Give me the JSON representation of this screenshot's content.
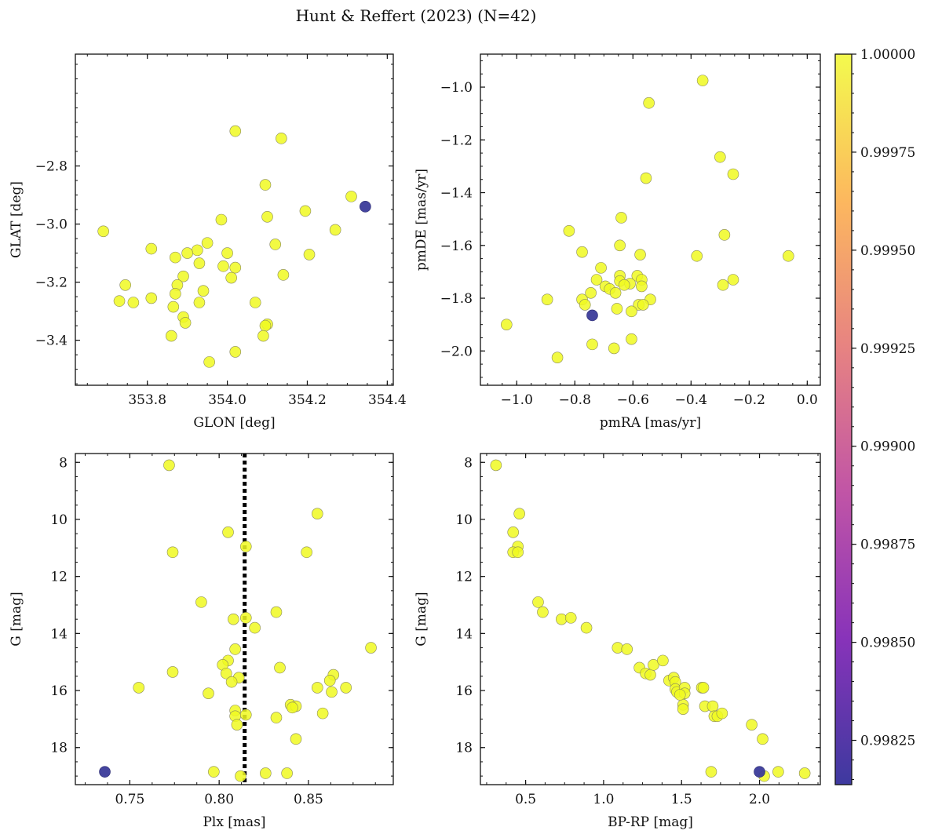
{
  "figure": {
    "title": "Hunt & Reffert (2023) (N=42)"
  },
  "colors": {
    "member_high": "#f0f921",
    "member_low": "#3b3b9a",
    "ref_line": "#000000"
  },
  "colorbar": {
    "ticks": [
      "1.00000",
      "0.99975",
      "0.99950",
      "0.99925",
      "0.99900",
      "0.99875",
      "0.99850",
      "0.99825"
    ],
    "range": [
      0.998137,
      1.0
    ],
    "cmap": "plasma"
  },
  "chart_data": [
    {
      "type": "scatter",
      "name": "sky",
      "xlabel": "GLON [deg]",
      "ylabel": "GLAT [deg]",
      "xlim": [
        353.62,
        354.415
      ],
      "ylim": [
        -3.555,
        -2.415
      ],
      "invert_y": false,
      "xticks": [
        353.8,
        354.0,
        354.2,
        354.4
      ],
      "xtick_labels": [
        "353.8",
        "354.0",
        "354.2",
        "354.4"
      ],
      "yticks": [
        -2.8,
        -3.0,
        -3.2,
        -3.4
      ],
      "ytick_labels": [
        "−2.8",
        "−3.0",
        "−3.2",
        "−3.4"
      ],
      "points": [
        [
          354.02,
          -2.68,
          1
        ],
        [
          354.135,
          -2.705,
          1
        ],
        [
          354.095,
          -2.865,
          1
        ],
        [
          354.31,
          -2.905,
          1
        ],
        [
          353.69,
          -3.025,
          1
        ],
        [
          354.195,
          -2.955,
          1
        ],
        [
          353.985,
          -2.985,
          1
        ],
        [
          354.1,
          -2.975,
          1
        ],
        [
          354.27,
          -3.02,
          1
        ],
        [
          353.95,
          -3.065,
          1
        ],
        [
          353.81,
          -3.085,
          1
        ],
        [
          353.925,
          -3.09,
          1
        ],
        [
          353.9,
          -3.1,
          1
        ],
        [
          353.87,
          -3.115,
          1
        ],
        [
          354.0,
          -3.1,
          1
        ],
        [
          354.12,
          -3.07,
          1
        ],
        [
          354.205,
          -3.105,
          1
        ],
        [
          353.93,
          -3.135,
          1
        ],
        [
          353.99,
          -3.145,
          1
        ],
        [
          354.02,
          -3.15,
          1
        ],
        [
          353.89,
          -3.18,
          1
        ],
        [
          354.01,
          -3.185,
          1
        ],
        [
          354.14,
          -3.175,
          1
        ],
        [
          353.745,
          -3.21,
          1
        ],
        [
          353.875,
          -3.21,
          1
        ],
        [
          353.94,
          -3.23,
          1
        ],
        [
          353.87,
          -3.24,
          1
        ],
        [
          353.81,
          -3.255,
          1
        ],
        [
          353.73,
          -3.265,
          1
        ],
        [
          353.765,
          -3.27,
          1
        ],
        [
          353.93,
          -3.27,
          1
        ],
        [
          354.07,
          -3.27,
          1
        ],
        [
          353.865,
          -3.285,
          1
        ],
        [
          353.89,
          -3.32,
          1
        ],
        [
          353.895,
          -3.34,
          1
        ],
        [
          354.1,
          -3.345,
          1
        ],
        [
          354.095,
          -3.35,
          1
        ],
        [
          353.86,
          -3.385,
          1
        ],
        [
          354.09,
          -3.385,
          1
        ],
        [
          354.02,
          -3.44,
          1
        ],
        [
          353.955,
          -3.475,
          1
        ],
        [
          354.345,
          -2.94,
          0.998137
        ]
      ]
    },
    {
      "type": "scatter",
      "name": "proper-motion",
      "xlabel": "pmRA [mas/yr]",
      "ylabel": "pmDE [mas/yr]",
      "xlim": [
        -1.125,
        0.045
      ],
      "ylim": [
        -2.13,
        -0.875
      ],
      "invert_y": false,
      "xticks": [
        -1.0,
        -0.8,
        -0.6,
        -0.4,
        -0.2,
        0.0
      ],
      "xtick_labels": [
        "−1.0",
        "−0.8",
        "−0.6",
        "−0.4",
        "−0.2",
        "0.0"
      ],
      "yticks": [
        -1.0,
        -1.2,
        -1.4,
        -1.6,
        -1.8,
        -2.0
      ],
      "ytick_labels": [
        "−1.0",
        "−1.2",
        "−1.4",
        "−1.6",
        "−1.8",
        "−2.0"
      ],
      "points": [
        [
          -0.36,
          -0.975,
          1
        ],
        [
          -0.545,
          -1.06,
          1
        ],
        [
          -0.3,
          -1.265,
          1
        ],
        [
          -0.255,
          -1.33,
          1
        ],
        [
          -0.555,
          -1.345,
          1
        ],
        [
          -0.64,
          -1.495,
          1
        ],
        [
          -0.82,
          -1.545,
          1
        ],
        [
          -0.285,
          -1.56,
          1
        ],
        [
          -0.645,
          -1.6,
          1
        ],
        [
          -0.775,
          -1.625,
          1
        ],
        [
          -0.575,
          -1.635,
          1
        ],
        [
          -0.38,
          -1.64,
          1
        ],
        [
          -0.065,
          -1.64,
          1
        ],
        [
          -0.71,
          -1.685,
          1
        ],
        [
          -0.645,
          -1.715,
          1
        ],
        [
          -0.585,
          -1.715,
          1
        ],
        [
          -0.725,
          -1.73,
          1
        ],
        [
          -0.645,
          -1.735,
          1
        ],
        [
          -0.57,
          -1.73,
          1
        ],
        [
          -0.255,
          -1.73,
          1
        ],
        [
          -0.61,
          -1.745,
          1
        ],
        [
          -0.63,
          -1.75,
          1
        ],
        [
          -0.695,
          -1.755,
          1
        ],
        [
          -0.57,
          -1.755,
          1
        ],
        [
          -0.29,
          -1.75,
          1
        ],
        [
          -0.68,
          -1.765,
          1
        ],
        [
          -0.745,
          -1.78,
          1
        ],
        [
          -0.66,
          -1.78,
          1
        ],
        [
          -0.895,
          -1.805,
          1
        ],
        [
          -0.775,
          -1.805,
          1
        ],
        [
          -0.54,
          -1.805,
          1
        ],
        [
          -0.765,
          -1.825,
          1
        ],
        [
          -0.58,
          -1.825,
          1
        ],
        [
          -0.565,
          -1.825,
          1
        ],
        [
          -0.655,
          -1.84,
          1
        ],
        [
          -0.605,
          -1.85,
          1
        ],
        [
          -1.035,
          -1.9,
          1
        ],
        [
          -0.605,
          -1.955,
          1
        ],
        [
          -0.74,
          -1.975,
          1
        ],
        [
          -0.665,
          -1.99,
          1
        ],
        [
          -0.86,
          -2.025,
          1
        ],
        [
          -0.74,
          -1.865,
          0.998137
        ]
      ]
    },
    {
      "type": "scatter",
      "name": "parallax-mag",
      "xlabel": "Plx [mas]",
      "ylabel": "G [mag]",
      "xlim": [
        0.7195,
        0.8975
      ],
      "ylim": [
        19.3,
        7.69
      ],
      "invert_y": true,
      "ref_x": 0.8143,
      "xticks": [
        0.75,
        0.8,
        0.85
      ],
      "xtick_labels": [
        "0.75",
        "0.80",
        "0.85"
      ],
      "yticks": [
        8,
        10,
        12,
        14,
        16,
        18
      ],
      "ytick_labels": [
        "8",
        "10",
        "12",
        "14",
        "16",
        "18"
      ],
      "points": [
        [
          0.772,
          8.1,
          1
        ],
        [
          0.855,
          9.8,
          1
        ],
        [
          0.805,
          10.45,
          1
        ],
        [
          0.815,
          10.95,
          1
        ],
        [
          0.774,
          11.15,
          1
        ],
        [
          0.849,
          11.15,
          1
        ],
        [
          0.79,
          12.9,
          1
        ],
        [
          0.832,
          13.25,
          1
        ],
        [
          0.815,
          13.45,
          1
        ],
        [
          0.808,
          13.5,
          1
        ],
        [
          0.82,
          13.8,
          1
        ],
        [
          0.885,
          14.5,
          1
        ],
        [
          0.809,
          14.55,
          1
        ],
        [
          0.805,
          14.95,
          1
        ],
        [
          0.802,
          15.1,
          1
        ],
        [
          0.834,
          15.2,
          1
        ],
        [
          0.774,
          15.35,
          1
        ],
        [
          0.804,
          15.4,
          1
        ],
        [
          0.864,
          15.45,
          1
        ],
        [
          0.811,
          15.55,
          1
        ],
        [
          0.862,
          15.65,
          1
        ],
        [
          0.807,
          15.7,
          1
        ],
        [
          0.755,
          15.9,
          1
        ],
        [
          0.855,
          15.9,
          1
        ],
        [
          0.871,
          15.9,
          1
        ],
        [
          0.794,
          16.1,
          1
        ],
        [
          0.863,
          16.05,
          1
        ],
        [
          0.84,
          16.5,
          1
        ],
        [
          0.843,
          16.55,
          1
        ],
        [
          0.841,
          16.6,
          1
        ],
        [
          0.809,
          16.7,
          1
        ],
        [
          0.858,
          16.8,
          1
        ],
        [
          0.809,
          16.9,
          1
        ],
        [
          0.815,
          16.85,
          1
        ],
        [
          0.832,
          16.95,
          1
        ],
        [
          0.81,
          17.2,
          1
        ],
        [
          0.843,
          17.7,
          1
        ],
        [
          0.797,
          18.85,
          1
        ],
        [
          0.826,
          18.9,
          1
        ],
        [
          0.838,
          18.9,
          1
        ],
        [
          0.812,
          19.0,
          1
        ],
        [
          0.736,
          18.85,
          0.998137
        ]
      ]
    },
    {
      "type": "scatter",
      "name": "color-mag",
      "xlabel": "BP-RP [mag]",
      "ylabel": "G [mag]",
      "xlim": [
        0.21,
        2.39
      ],
      "ylim": [
        19.3,
        7.69
      ],
      "invert_y": true,
      "xticks": [
        0.5,
        1.0,
        1.5,
        2.0
      ],
      "xtick_labels": [
        "0.5",
        "1.0",
        "1.5",
        "2.0"
      ],
      "yticks": [
        8,
        10,
        12,
        14,
        16,
        18
      ],
      "ytick_labels": [
        "8",
        "10",
        "12",
        "14",
        "16",
        "18"
      ],
      "points": [
        [
          0.31,
          8.1,
          1
        ],
        [
          0.46,
          9.8,
          1
        ],
        [
          0.42,
          10.45,
          1
        ],
        [
          0.45,
          10.95,
          1
        ],
        [
          0.42,
          11.15,
          1
        ],
        [
          0.45,
          11.15,
          1
        ],
        [
          0.58,
          12.9,
          1
        ],
        [
          0.61,
          13.25,
          1
        ],
        [
          0.73,
          13.5,
          1
        ],
        [
          0.79,
          13.45,
          1
        ],
        [
          0.89,
          13.8,
          1
        ],
        [
          1.09,
          14.5,
          1
        ],
        [
          1.15,
          14.55,
          1
        ],
        [
          1.23,
          15.2,
          1
        ],
        [
          1.27,
          15.4,
          1
        ],
        [
          1.3,
          15.45,
          1
        ],
        [
          1.32,
          15.1,
          1
        ],
        [
          1.38,
          14.95,
          1
        ],
        [
          1.42,
          15.65,
          1
        ],
        [
          1.45,
          15.55,
          1
        ],
        [
          1.46,
          15.7,
          1
        ],
        [
          1.46,
          15.95,
          1
        ],
        [
          1.47,
          16.05,
          1
        ],
        [
          1.52,
          15.9,
          1
        ],
        [
          1.52,
          16.1,
          1
        ],
        [
          1.51,
          16.5,
          1
        ],
        [
          1.51,
          16.65,
          1
        ],
        [
          1.63,
          15.9,
          1
        ],
        [
          1.65,
          16.55,
          1
        ],
        [
          1.7,
          16.55,
          1
        ],
        [
          1.71,
          16.9,
          1
        ],
        [
          1.73,
          16.9,
          1
        ],
        [
          1.76,
          16.8,
          1
        ],
        [
          1.95,
          17.2,
          1
        ],
        [
          2.02,
          17.7,
          1
        ],
        [
          1.69,
          18.85,
          1
        ],
        [
          2.12,
          18.85,
          1
        ],
        [
          2.29,
          18.9,
          1
        ],
        [
          2.03,
          19.0,
          1
        ],
        [
          1.64,
          15.9,
          1
        ],
        [
          1.49,
          16.15,
          1
        ],
        [
          2.0,
          18.85,
          0.998137
        ]
      ]
    }
  ]
}
